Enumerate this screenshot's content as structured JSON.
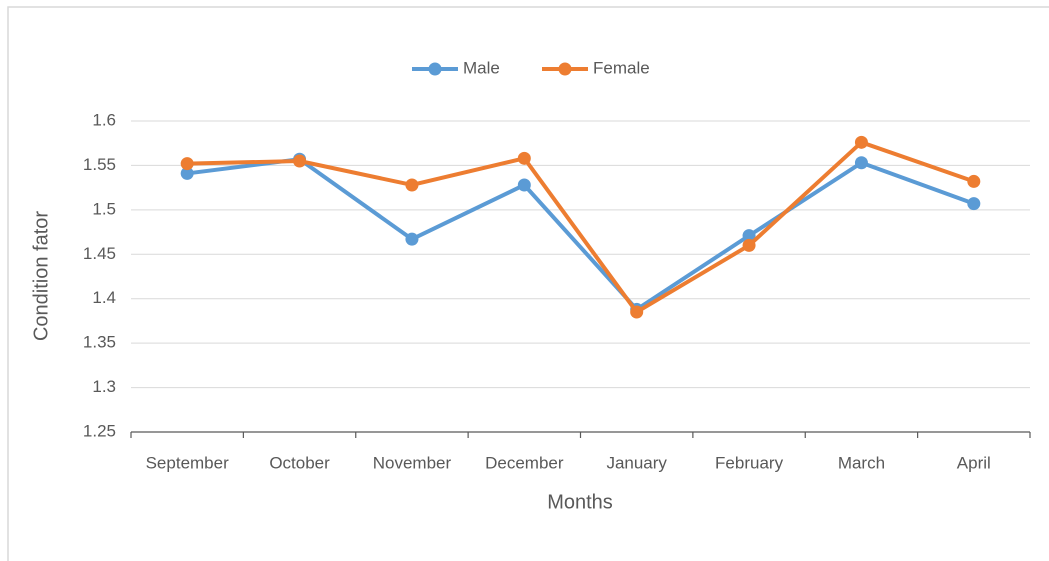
{
  "chart_data": {
    "type": "line",
    "categories": [
      "September",
      "October",
      "November",
      "December",
      "January",
      "February",
      "March",
      "April"
    ],
    "series": [
      {
        "name": "Male",
        "color": "#5b9bd5",
        "values": [
          1.541,
          1.557,
          1.467,
          1.528,
          1.388,
          1.471,
          1.553,
          1.507
        ]
      },
      {
        "name": "Female",
        "color": "#ed7d31",
        "values": [
          1.552,
          1.555,
          1.528,
          1.558,
          1.385,
          1.46,
          1.576,
          1.532
        ]
      }
    ],
    "xlabel": "Months",
    "ylabel": "Condition fator",
    "ylim": [
      1.25,
      1.6
    ],
    "yticks": [
      1.25,
      1.3,
      1.35,
      1.4,
      1.45,
      1.5,
      1.55,
      1.6
    ],
    "grid": true,
    "legend": "top"
  }
}
